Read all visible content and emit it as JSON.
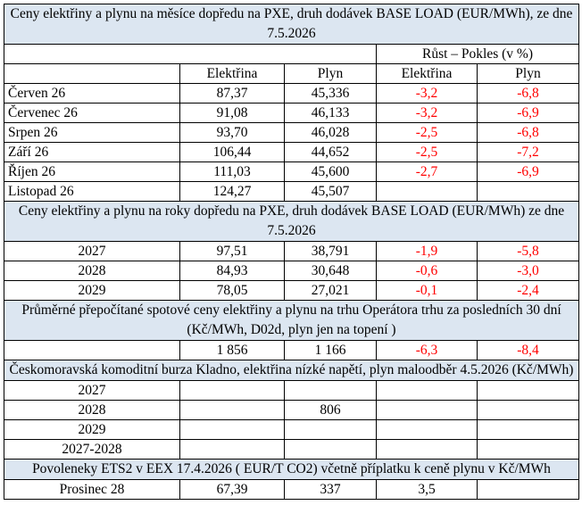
{
  "sections": [
    {
      "title": "Ceny elektřiny a plynu na měsíce dopředu na PXE, druh dodávek BASE LOAD (EUR/MWh), ze dne 7.5.2026",
      "header_group": "Růst – Pokles (v %)",
      "columns": [
        "Elektřina",
        "Plyn",
        "Elektřina",
        "Plyn"
      ],
      "rows": [
        [
          "Červen 26",
          "87,37",
          "45,336",
          "-3,2",
          "-6,8"
        ],
        [
          "Červenec 26",
          "91,08",
          "46,133",
          "-3,2",
          "-6,9"
        ],
        [
          "Srpen 26",
          "93,70",
          "46,028",
          "-2,5",
          "-6,8"
        ],
        [
          "Září 26",
          "106,44",
          "44,652",
          "-2,5",
          "-7,2"
        ],
        [
          "Říjen 26",
          "111,03",
          "45,600",
          "-2,7",
          "-6,9"
        ],
        [
          "Listopad 26",
          "124,27",
          "45,507",
          null,
          null
        ]
      ]
    },
    {
      "title": "Ceny elektřiny a plynu na roky dopředu na PXE, druh dodávek BASE LOAD (EUR/MWh) ze dne 7.5.2026",
      "rows": [
        [
          "2027",
          "97,51",
          "38,791",
          "-1,9",
          "-5,8"
        ],
        [
          "2028",
          "84,93",
          "30,648",
          "-0,6",
          "-3,0"
        ],
        [
          "2029",
          "78,05",
          "27,021",
          "-0,1",
          "-2,4"
        ]
      ]
    },
    {
      "title": "Průměrné přepočítané spotové ceny elektřiny a plynu na trhu Operátora trhu za posledních 30 dní (Kč/MWh, D02d, plyn jen na topení )",
      "rows": [
        [
          null,
          "1 856",
          "1 166",
          "-6,3",
          "-8,4"
        ]
      ]
    },
    {
      "title": "Českomoravská komoditní burza Kladno, elektřina nízké napětí, plyn maloodběr 4.5.2026 (Kč/MWh)",
      "rows": [
        [
          "2027",
          null,
          null,
          null,
          null
        ],
        [
          "2028",
          null,
          "806",
          null,
          null
        ],
        [
          "2029",
          null,
          null,
          null,
          null
        ],
        [
          "2027-2028",
          null,
          null,
          null,
          null
        ]
      ]
    },
    {
      "title": "Povoleneky ETS2 v EEX 17.4.2026  ( EUR/T CO2) včetně příplatku k ceně plynu v Kč/MWh",
      "rows": [
        [
          "Prosinec 28",
          "67,39",
          "337",
          "3,5",
          null
        ]
      ]
    }
  ]
}
